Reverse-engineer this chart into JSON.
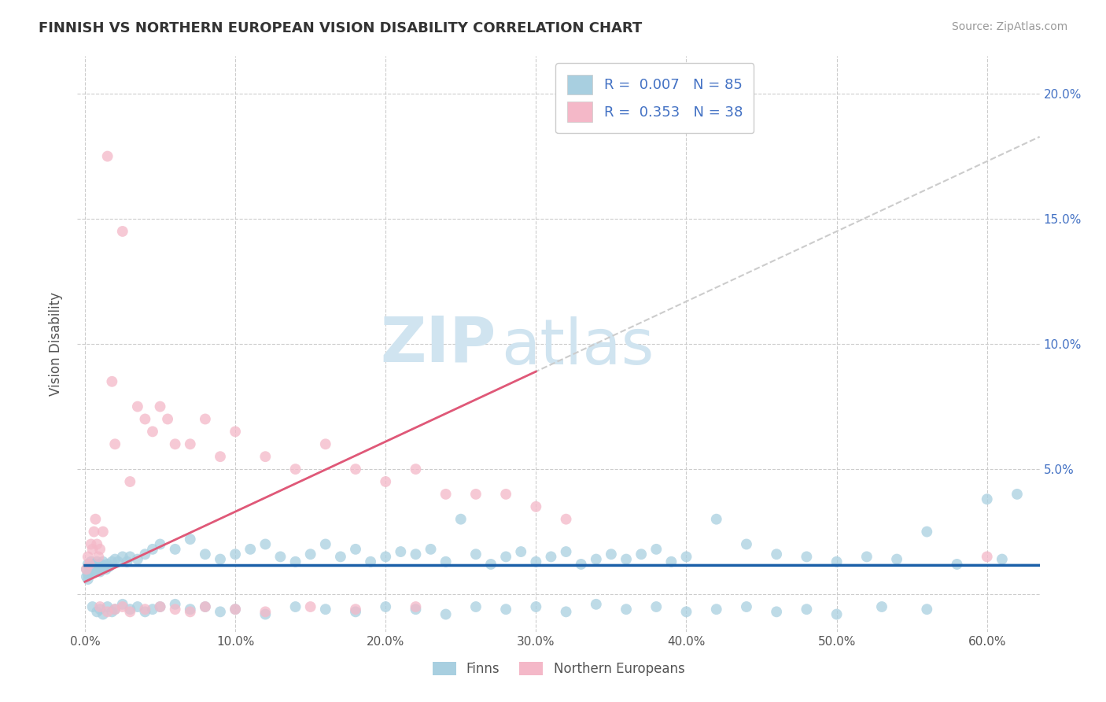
{
  "title": "FINNISH VS NORTHERN EUROPEAN VISION DISABILITY CORRELATION CHART",
  "source": "Source: ZipAtlas.com",
  "ylabel": "Vision Disability",
  "x_ticks": [
    0.0,
    0.1,
    0.2,
    0.3,
    0.4,
    0.5,
    0.6
  ],
  "x_tick_labels": [
    "0.0%",
    "10.0%",
    "20.0%",
    "30.0%",
    "40.0%",
    "50.0%",
    "60.0%"
  ],
  "y_ticks": [
    0.0,
    0.05,
    0.1,
    0.15,
    0.2
  ],
  "y_tick_labels_left": [
    "",
    "",
    "",
    "",
    ""
  ],
  "y_tick_labels_right": [
    "",
    "5.0%",
    "10.0%",
    "15.0%",
    "20.0%"
  ],
  "y_lim": [
    -0.015,
    0.215
  ],
  "x_lim": [
    -0.005,
    0.635
  ],
  "finns_color": "#a8cfe0",
  "northern_color": "#f4b8c8",
  "finns_R": 0.007,
  "finns_N": 85,
  "northern_R": 0.353,
  "northern_N": 38,
  "trend_finns_color": "#1a5fa8",
  "trend_northern_color": "#e05878",
  "trend_northern_ext_color": "#cccccc",
  "watermark_zip": "ZIP",
  "watermark_atlas": "atlas",
  "watermark_color": "#d0e4f0",
  "legend_label_1": "Finns",
  "legend_label_2": "Northern Europeans",
  "background_color": "#ffffff",
  "grid_color": "#cccccc",
  "finns_x": [
    0.001,
    0.002,
    0.002,
    0.003,
    0.003,
    0.004,
    0.004,
    0.005,
    0.005,
    0.006,
    0.006,
    0.007,
    0.007,
    0.008,
    0.008,
    0.009,
    0.009,
    0.01,
    0.01,
    0.011,
    0.012,
    0.013,
    0.014,
    0.015,
    0.016,
    0.018,
    0.02,
    0.022,
    0.025,
    0.028,
    0.03,
    0.035,
    0.04,
    0.045,
    0.05,
    0.06,
    0.07,
    0.08,
    0.09,
    0.1,
    0.11,
    0.12,
    0.13,
    0.14,
    0.15,
    0.16,
    0.17,
    0.18,
    0.19,
    0.2,
    0.21,
    0.22,
    0.23,
    0.24,
    0.25,
    0.26,
    0.27,
    0.28,
    0.29,
    0.3,
    0.31,
    0.32,
    0.33,
    0.34,
    0.35,
    0.36,
    0.37,
    0.38,
    0.39,
    0.4,
    0.42,
    0.44,
    0.46,
    0.48,
    0.5,
    0.52,
    0.54,
    0.56,
    0.58,
    0.6,
    0.61,
    0.62,
    0.001,
    0.002,
    0.003
  ],
  "finns_y": [
    0.01,
    0.012,
    0.008,
    0.011,
    0.009,
    0.013,
    0.01,
    0.011,
    0.009,
    0.012,
    0.01,
    0.011,
    0.009,
    0.013,
    0.01,
    0.012,
    0.01,
    0.011,
    0.009,
    0.012,
    0.013,
    0.011,
    0.01,
    0.012,
    0.011,
    0.013,
    0.014,
    0.013,
    0.015,
    0.013,
    0.015,
    0.014,
    0.016,
    0.018,
    0.02,
    0.018,
    0.022,
    0.016,
    0.014,
    0.016,
    0.018,
    0.02,
    0.015,
    0.013,
    0.016,
    0.02,
    0.015,
    0.018,
    0.013,
    0.015,
    0.017,
    0.016,
    0.018,
    0.013,
    0.03,
    0.016,
    0.012,
    0.015,
    0.017,
    0.013,
    0.015,
    0.017,
    0.012,
    0.014,
    0.016,
    0.014,
    0.016,
    0.018,
    0.013,
    0.015,
    0.03,
    0.02,
    0.016,
    0.015,
    0.013,
    0.015,
    0.014,
    0.025,
    0.012,
    0.038,
    0.014,
    0.04,
    0.007,
    0.006,
    0.008
  ],
  "finns_y_neg": [
    -0.005,
    -0.007,
    -0.006,
    -0.008,
    -0.005,
    -0.007,
    -0.006,
    -0.004,
    -0.006,
    -0.005,
    -0.007,
    -0.006,
    -0.005,
    -0.004,
    -0.006,
    -0.005,
    -0.007,
    -0.006,
    -0.008,
    -0.005,
    -0.006,
    -0.007,
    -0.005,
    -0.006,
    -0.008,
    -0.005,
    -0.006,
    -0.005,
    -0.007,
    -0.004,
    -0.006,
    -0.005,
    -0.007,
    -0.006,
    -0.005,
    -0.007,
    -0.006,
    -0.008,
    -0.005,
    -0.006
  ],
  "finns_x_neg": [
    0.005,
    0.008,
    0.01,
    0.012,
    0.015,
    0.018,
    0.02,
    0.025,
    0.03,
    0.035,
    0.04,
    0.045,
    0.05,
    0.06,
    0.07,
    0.08,
    0.09,
    0.1,
    0.12,
    0.14,
    0.16,
    0.18,
    0.2,
    0.22,
    0.24,
    0.26,
    0.28,
    0.3,
    0.32,
    0.34,
    0.36,
    0.38,
    0.4,
    0.42,
    0.44,
    0.46,
    0.48,
    0.5,
    0.53,
    0.56
  ],
  "northern_x": [
    0.001,
    0.002,
    0.003,
    0.004,
    0.005,
    0.006,
    0.007,
    0.008,
    0.009,
    0.01,
    0.012,
    0.015,
    0.018,
    0.02,
    0.025,
    0.03,
    0.035,
    0.04,
    0.045,
    0.05,
    0.055,
    0.06,
    0.07,
    0.08,
    0.09,
    0.1,
    0.12,
    0.14,
    0.16,
    0.18,
    0.2,
    0.22,
    0.24,
    0.26,
    0.28,
    0.3,
    0.32,
    0.6
  ],
  "northern_y": [
    0.01,
    0.015,
    0.012,
    0.02,
    0.018,
    0.025,
    0.03,
    0.02,
    0.015,
    0.018,
    0.025,
    0.175,
    0.085,
    0.06,
    0.145,
    0.045,
    0.075,
    0.07,
    0.065,
    0.075,
    0.07,
    0.06,
    0.06,
    0.07,
    0.055,
    0.065,
    0.055,
    0.05,
    0.06,
    0.05,
    0.045,
    0.05,
    0.04,
    0.04,
    0.04,
    0.035,
    0.03,
    0.015
  ],
  "northern_y_neg": [
    -0.005,
    -0.007,
    -0.006,
    -0.005,
    -0.007,
    -0.006,
    -0.005,
    -0.006,
    -0.007,
    -0.005,
    -0.006,
    -0.007,
    -0.005,
    -0.006,
    -0.005
  ],
  "northern_x_neg": [
    0.01,
    0.015,
    0.02,
    0.025,
    0.03,
    0.04,
    0.05,
    0.06,
    0.07,
    0.08,
    0.1,
    0.12,
    0.15,
    0.18,
    0.22
  ],
  "trend_finns_y_intercept": 0.0115,
  "trend_finns_slope": 0.0001,
  "trend_northern_y_intercept": 0.005,
  "trend_northern_slope": 0.28
}
